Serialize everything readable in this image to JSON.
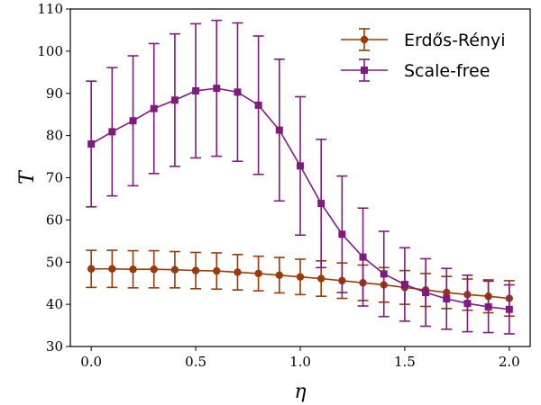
{
  "chart_data": {
    "type": "line",
    "xlabel": "η",
    "ylabel": "T",
    "xlim": [
      -0.1,
      2.1
    ],
    "ylim": [
      30,
      110
    ],
    "xticks": [
      0.0,
      0.5,
      1.0,
      1.5,
      2.0
    ],
    "xtick_labels": [
      "0.0",
      "0.5",
      "1.0",
      "1.5",
      "2.0"
    ],
    "yticks": [
      30,
      40,
      50,
      60,
      70,
      80,
      90,
      100,
      110
    ],
    "ytick_labels": [
      "30",
      "40",
      "50",
      "60",
      "70",
      "80",
      "90",
      "100",
      "110"
    ],
    "grid": false,
    "legend": "top-right",
    "x": [
      0.0,
      0.1,
      0.2,
      0.3,
      0.4,
      0.5,
      0.6,
      0.7,
      0.8,
      0.9,
      1.0,
      1.1,
      1.2,
      1.3,
      1.4,
      1.5,
      1.6,
      1.7,
      1.8,
      1.9,
      2.0
    ],
    "series": [
      {
        "name": "Erdős-Rényi",
        "color": "#9a3a06",
        "marker": "circle",
        "values": [
          48.4,
          48.4,
          48.3,
          48.3,
          48.2,
          48.0,
          47.9,
          47.6,
          47.3,
          46.9,
          46.5,
          46.1,
          45.6,
          45.1,
          44.6,
          44.0,
          43.4,
          42.8,
          42.3,
          41.9,
          41.4
        ],
        "errors": [
          4.4,
          4.4,
          4.4,
          4.4,
          4.3,
          4.3,
          4.3,
          4.2,
          4.1,
          4.2,
          4.2,
          4.2,
          4.2,
          4.2,
          4.1,
          4.0,
          3.9,
          3.8,
          3.7,
          3.9,
          4.2
        ]
      },
      {
        "name": "Scale-free",
        "color": "#801a80",
        "marker": "square",
        "values": [
          78.0,
          80.9,
          83.5,
          86.4,
          88.4,
          90.6,
          91.2,
          90.3,
          87.2,
          81.3,
          72.8,
          63.9,
          56.6,
          51.2,
          47.2,
          44.7,
          42.8,
          41.3,
          40.2,
          39.4,
          38.8
        ],
        "errors": [
          14.9,
          15.2,
          15.4,
          15.4,
          15.7,
          15.9,
          16.1,
          16.4,
          16.4,
          16.8,
          16.4,
          15.2,
          13.8,
          11.6,
          10.1,
          8.7,
          8.0,
          7.2,
          6.7,
          6.1,
          5.8
        ]
      }
    ]
  }
}
